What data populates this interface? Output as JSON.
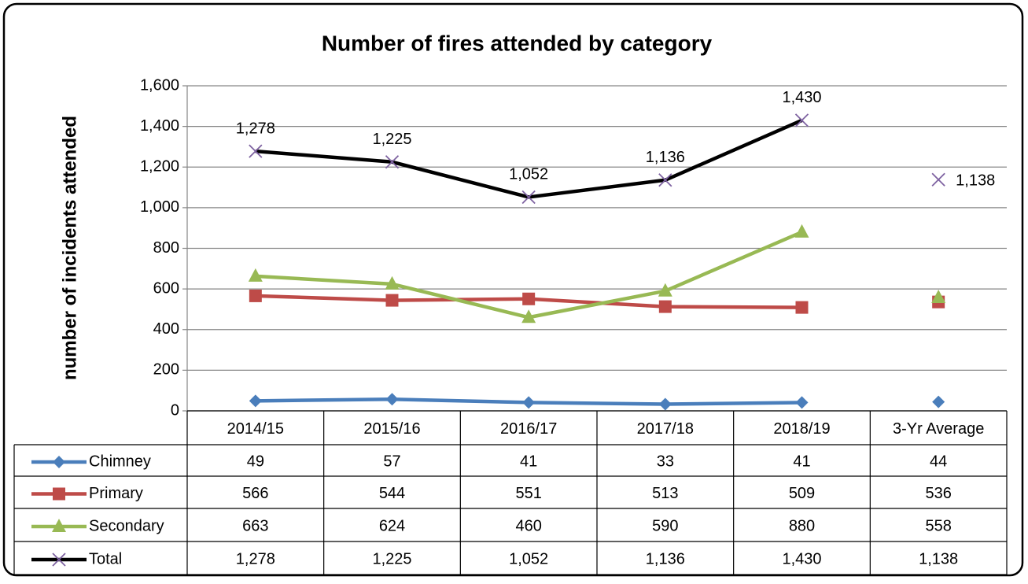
{
  "chart_data": {
    "type": "line",
    "title": "Number of fires attended by category",
    "y_label": "number of incidents attended",
    "categories": [
      "2014/15",
      "2015/16",
      "2016/17",
      "2017/18",
      "2018/19"
    ],
    "average_category": "3-Yr Average",
    "series": [
      {
        "name": "Chimney",
        "color": "#4a7ebb",
        "marker": "diamond",
        "values": [
          49,
          57,
          41,
          33,
          41
        ],
        "average": 44
      },
      {
        "name": "Primary",
        "color": "#be4b48",
        "marker": "square",
        "values": [
          566,
          544,
          551,
          513,
          509
        ],
        "average": 536
      },
      {
        "name": "Secondary",
        "color": "#98b954",
        "marker": "triangle",
        "values": [
          663,
          624,
          460,
          590,
          880
        ],
        "average": 558
      },
      {
        "name": "Total",
        "color": "#000000",
        "marker": "x",
        "marker_color": "#7e62a1",
        "values": [
          1278,
          1225,
          1052,
          1136,
          1430
        ],
        "value_labels": [
          "1,278",
          "1,225",
          "1,052",
          "1,136",
          "1,430"
        ],
        "average": 1138,
        "average_label": "1,138",
        "data_labels": true
      }
    ],
    "ylim": [
      0,
      1600
    ],
    "yticks": [
      0,
      200,
      400,
      600,
      800,
      {
        "value": 1000,
        "label": "1,000"
      },
      {
        "value": 1200,
        "label": "1,200"
      },
      {
        "value": 1400,
        "label": "1,400"
      },
      {
        "value": 1600,
        "label": "1,600"
      }
    ],
    "grid": true,
    "data_table": true
  }
}
